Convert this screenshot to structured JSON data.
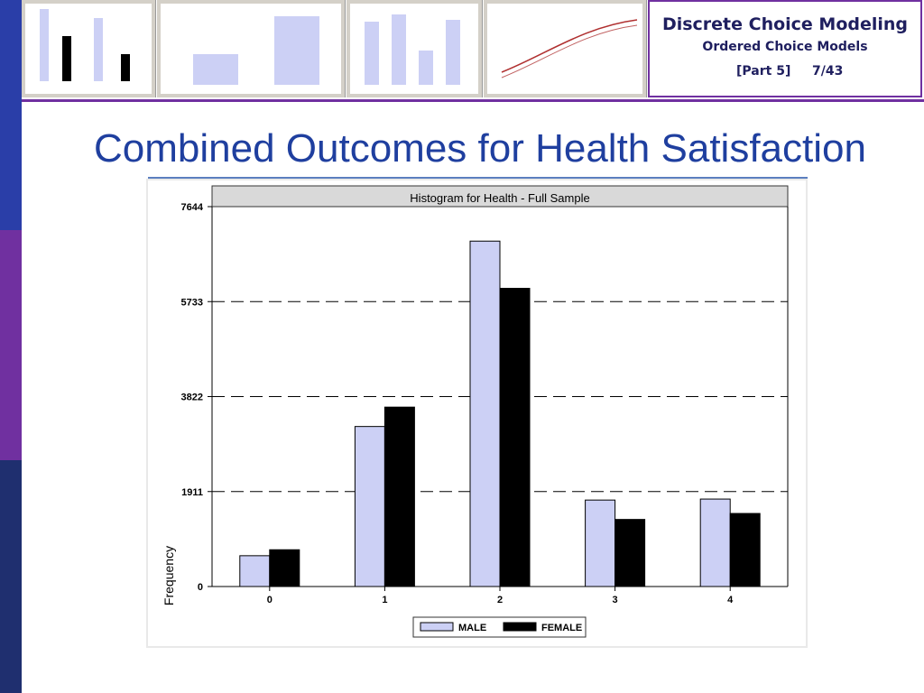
{
  "header": {
    "course_title": "Discrete Choice Modeling",
    "section_title": "Ordered Choice Models",
    "part_label": "[Part 5]",
    "page_label": "7/43"
  },
  "slide": {
    "title": "Combined Outcomes for Health Satisfaction"
  },
  "colors": {
    "title_blue": "#1f3f9f",
    "accent_purple": "#7030a0",
    "male_bar": "#ccd0f5",
    "female_bar": "#000000"
  },
  "chart_data": {
    "type": "bar",
    "title": "Histogram for Health - Full Sample",
    "xlabel": "",
    "ylabel": "Frequency",
    "categories": [
      "0",
      "1",
      "2",
      "3",
      "4"
    ],
    "yticks": [
      "0",
      "1911",
      "3822",
      "5733",
      "7644"
    ],
    "ylim": [
      0,
      7644
    ],
    "grid": "dashed horizontal at 1911, 3822, 5733",
    "legend_position": "bottom-center",
    "series": [
      {
        "name": "MALE",
        "color": "#ccd0f5",
        "values": [
          620,
          3220,
          6950,
          1740,
          1760
        ]
      },
      {
        "name": "FEMALE",
        "color": "#000000",
        "values": [
          740,
          3610,
          6000,
          1350,
          1470
        ]
      }
    ]
  }
}
